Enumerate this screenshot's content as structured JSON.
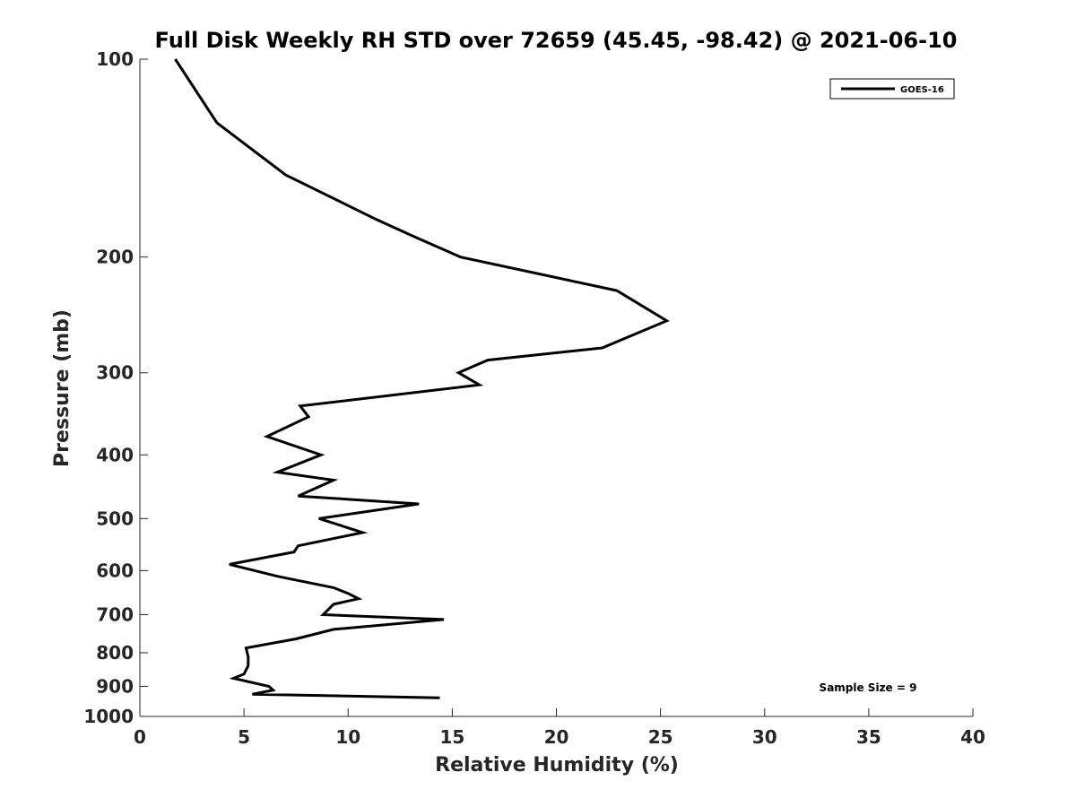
{
  "chart_data": {
    "type": "line",
    "title": "Full Disk Weekly RH STD over 72659 (45.45, -98.42) @ 2021-06-10",
    "xlabel": "Relative Humidity (%)",
    "ylabel": "Pressure (mb)",
    "xlim": [
      0,
      40
    ],
    "ylim": [
      100,
      1000
    ],
    "yscale": "log",
    "y_reversed": true,
    "x_ticks": [
      0,
      5,
      10,
      15,
      20,
      25,
      30,
      35,
      40
    ],
    "x_tick_labels": [
      "0",
      "5",
      "10",
      "15",
      "20",
      "25",
      "30",
      "35",
      "40"
    ],
    "y_ticks": [
      100,
      200,
      300,
      400,
      500,
      600,
      700,
      800,
      900,
      1000
    ],
    "y_tick_labels": [
      "100",
      "200",
      "300",
      "400",
      "500",
      "600",
      "700",
      "800",
      "900",
      "1000"
    ],
    "grid": false,
    "legend_position": "top-right",
    "series": [
      {
        "name": "GOES-16",
        "color": "#000000",
        "points": [
          [
            1.7,
            100
          ],
          [
            3.7,
            125
          ],
          [
            7.0,
            150
          ],
          [
            11.3,
            175
          ],
          [
            13.3,
            187
          ],
          [
            15.4,
            200
          ],
          [
            22.9,
            225
          ],
          [
            25.3,
            250
          ],
          [
            22.2,
            275
          ],
          [
            16.7,
            287
          ],
          [
            15.3,
            300
          ],
          [
            16.3,
            313
          ],
          [
            7.7,
            337
          ],
          [
            8.1,
            350
          ],
          [
            6.1,
            375
          ],
          [
            8.7,
            400
          ],
          [
            6.6,
            425
          ],
          [
            9.3,
            437
          ],
          [
            7.6,
            462
          ],
          [
            13.4,
            475
          ],
          [
            8.6,
            500
          ],
          [
            10.7,
            525
          ],
          [
            7.6,
            550
          ],
          [
            7.4,
            562
          ],
          [
            4.3,
            587
          ],
          [
            6.6,
            612
          ],
          [
            9.3,
            637
          ],
          [
            10.0,
            650
          ],
          [
            10.5,
            662
          ],
          [
            9.3,
            675
          ],
          [
            8.8,
            700
          ],
          [
            14.6,
            712
          ],
          [
            9.3,
            737
          ],
          [
            7.5,
            762
          ],
          [
            5.1,
            787
          ],
          [
            5.2,
            812
          ],
          [
            5.2,
            837
          ],
          [
            5.0,
            862
          ],
          [
            4.5,
            875
          ],
          [
            6.2,
            900
          ],
          [
            6.4,
            912
          ],
          [
            5.4,
            925
          ],
          [
            14.4,
            937
          ]
        ]
      }
    ],
    "annotations": [
      {
        "text": "Sample Size = 9",
        "x": 36.5,
        "y": 900
      }
    ]
  }
}
